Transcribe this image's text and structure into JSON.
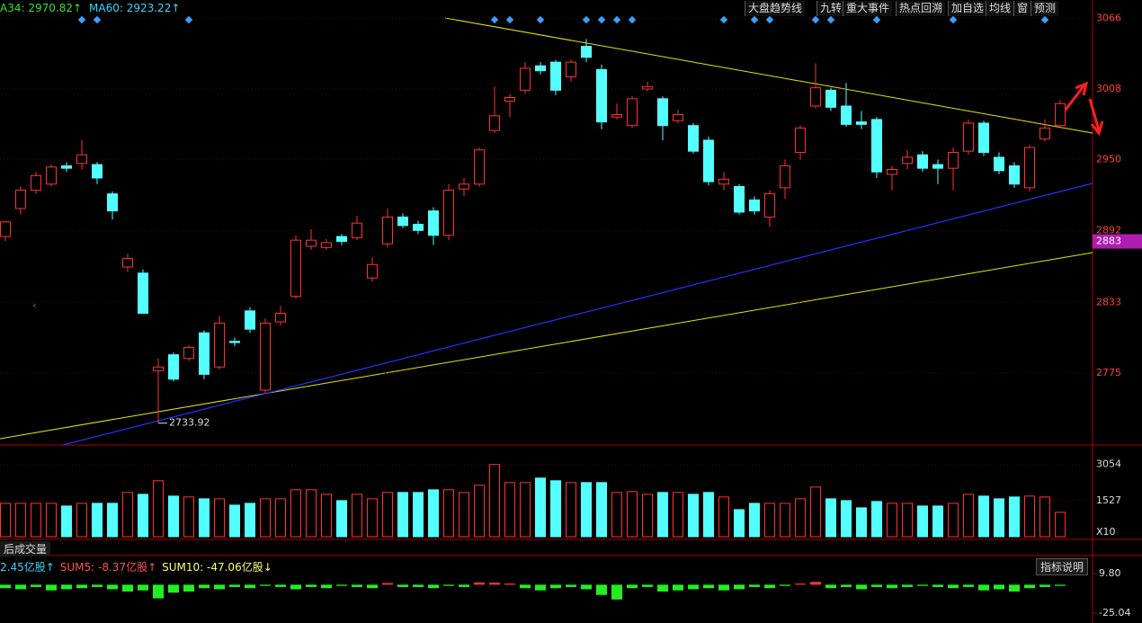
{
  "chart_data": [
    {
      "type": "candlestick",
      "header": [
        {
          "text": "A34: 2970.82↑",
          "color": "#35e035"
        },
        {
          "text": "MA60: 2923.22↑",
          "color": "#35d6ff"
        }
      ],
      "buttons": [
        "大盘趋势线",
        "九转",
        "重大事件",
        "热点回溯",
        "加自选",
        "均线",
        "窗",
        "预测"
      ],
      "categories": [
        null,
        null,
        null,
        null,
        null,
        null,
        null,
        null,
        null,
        null,
        null,
        null,
        null,
        null,
        null,
        null,
        null,
        null,
        null,
        null,
        null,
        null,
        null,
        null,
        null,
        null,
        null,
        null,
        null,
        null,
        null,
        null,
        null,
        null,
        null,
        null,
        null,
        null,
        null,
        null,
        null,
        null,
        null,
        null,
        null,
        null,
        null,
        null,
        null,
        null,
        null,
        null,
        null,
        null,
        null,
        null,
        null,
        null,
        null,
        null,
        null,
        null,
        null,
        null,
        null,
        null,
        null,
        null,
        null,
        null
      ],
      "open": [
        2887,
        2910,
        2925,
        2930,
        2945,
        2947,
        2946,
        2922,
        2862,
        2857,
        2777,
        2790,
        2787,
        2808,
        2780,
        2801,
        2826,
        2761,
        2817,
        2838,
        2879,
        2878,
        2887,
        2886,
        2853,
        2881,
        2903,
        2897,
        2908,
        2888,
        2926,
        2930,
        2974,
        2998,
        3007,
        3027,
        3030,
        3018,
        3043,
        3024,
        2985,
        2978,
        3008,
        3000,
        2982,
        2978,
        2966,
        2930,
        2928,
        2917,
        2903,
        2927,
        2956,
        2994,
        3007,
        2994,
        2981,
        2983,
        2938,
        2947,
        2954,
        2946,
        2943,
        2957,
        2980,
        2952,
        2945,
        2927,
        2967,
        2978
      ],
      "high": [
        2900,
        2928,
        2940,
        2946,
        2948,
        2966,
        2948,
        2924,
        2873,
        2860,
        2787,
        2792,
        2798,
        2810,
        2822,
        2804,
        2829,
        2820,
        2830,
        2888,
        2893,
        2885,
        2889,
        2904,
        2870,
        2910,
        2906,
        2900,
        2911,
        2930,
        2935,
        2960,
        3010,
        3004,
        3030,
        3030,
        3032,
        3032,
        3049,
        3028,
        2996,
        3002,
        3014,
        3002,
        2991,
        2980,
        2969,
        2940,
        2930,
        2920,
        2925,
        2950,
        2978,
        3029,
        3009,
        3013,
        2990,
        2985,
        2945,
        2958,
        2957,
        2950,
        2960,
        2983,
        2982,
        2956,
        2948,
        2962,
        2983,
        2999
      ],
      "low": [
        2883,
        2905,
        2922,
        2928,
        2940,
        2942,
        2930,
        2901,
        2858,
        2824,
        2733.92,
        2768,
        2785,
        2770,
        2778,
        2797,
        2808,
        2758,
        2814,
        2836,
        2876,
        2876,
        2880,
        2884,
        2850,
        2878,
        2894,
        2889,
        2880,
        2884,
        2920,
        2928,
        2972,
        2985,
        3004,
        3020,
        3003,
        3014,
        3030,
        2975,
        2983,
        2976,
        3006,
        2966,
        2980,
        2955,
        2929,
        2925,
        2905,
        2905,
        2895,
        2918,
        2950,
        2992,
        2990,
        2977,
        2975,
        2935,
        2925,
        2942,
        2940,
        2930,
        2925,
        2954,
        2953,
        2938,
        2927,
        2924,
        2965,
        2976
      ],
      "close": [
        2899,
        2925,
        2937,
        2944,
        2943,
        2954,
        2935,
        2908,
        2869,
        2824,
        2780,
        2770,
        2796,
        2774,
        2816,
        2800,
        2811,
        2816,
        2824,
        2884,
        2884,
        2882,
        2883,
        2898,
        2864,
        2903,
        2896,
        2892,
        2888,
        2925,
        2930,
        2958,
        2986,
        3001,
        3025,
        3023,
        3007,
        3030,
        3034,
        2981,
        2987,
        3000,
        3010,
        2978,
        2987,
        2957,
        2932,
        2934,
        2907,
        2908,
        2922,
        2945,
        2976,
        3009,
        2993,
        2979,
        2979,
        2940,
        2942,
        2952,
        2943,
        2943,
        2956,
        2980,
        2956,
        2941,
        2930,
        2960,
        2976,
        2996
      ],
      "up_color": "#ff3232",
      "down_color": "#54ffff",
      "signals": [
        5,
        6,
        12,
        32,
        33,
        35,
        38,
        39,
        40,
        41,
        47,
        49,
        50,
        53,
        54,
        57,
        62,
        68
      ],
      "low_label": "2733.92",
      "current_price": 2883,
      "ylim": [
        2716,
        3081
      ],
      "yticks": [
        3066,
        3008,
        2950,
        2892,
        2833,
        2775
      ],
      "grid": true
    },
    {
      "type": "bar",
      "tab": "后成交量",
      "unit_label": "X10",
      "values": [
        1412,
        1412,
        1412,
        1412,
        1298,
        1412,
        1412,
        1412,
        1871,
        1794,
        2367,
        1718,
        1680,
        1603,
        1603,
        1336,
        1412,
        1603,
        1603,
        1985,
        1985,
        1794,
        1527,
        1794,
        1603,
        1871,
        1871,
        1871,
        1985,
        1985,
        1871,
        2176,
        3054,
        2290,
        2290,
        2481,
        2367,
        2290,
        2290,
        2290,
        1871,
        1909,
        1794,
        1871,
        1871,
        1794,
        1871,
        1680,
        1145,
        1412,
        1412,
        1412,
        1603,
        2100,
        1603,
        1527,
        1222,
        1489,
        1412,
        1412,
        1298,
        1298,
        1412,
        1794,
        1718,
        1603,
        1680,
        1718,
        1680,
        1031
      ],
      "ylim": [
        0,
        3500
      ],
      "yticks": [
        3054,
        1527
      ]
    },
    {
      "type": "bar",
      "legend": [
        {
          "text": "2.45亿股↑",
          "color": "#35d6ff"
        },
        {
          "text": "SUM5: -8.37亿股↑",
          "color": "#ff5050"
        },
        {
          "text": "SUM10: -47.06亿股↓",
          "color": "#ffff66"
        }
      ],
      "button": "指标说明",
      "values": [
        -3,
        -4,
        -2,
        -5,
        -4,
        -3,
        -2,
        -4,
        -6,
        -5,
        -12,
        -7,
        -6,
        -3,
        -4,
        -2,
        -3,
        -1,
        -2,
        -4,
        -2,
        -3,
        -1,
        -2,
        -3,
        1.5,
        -2,
        -2,
        -3,
        -1,
        -2,
        2,
        1.8,
        1,
        -3,
        -5,
        -3,
        -2,
        -4,
        -9,
        -13,
        -3,
        -2,
        -6,
        -5,
        -4,
        -3,
        -5,
        -4,
        -2,
        -3,
        -1,
        1,
        2.5,
        -3,
        -2,
        -4,
        -2,
        -3,
        -2,
        -1,
        -2,
        -3,
        -2,
        -5,
        -4,
        -6,
        -3,
        -2,
        -1
      ],
      "pos_color": "#ff3232",
      "neg_color": "#22ee22",
      "ylim": [
        -33.7,
        20.1
      ],
      "yticks": [
        {
          "value": 9.8,
          "label": "9.80"
        },
        -25.04
      ]
    }
  ]
}
